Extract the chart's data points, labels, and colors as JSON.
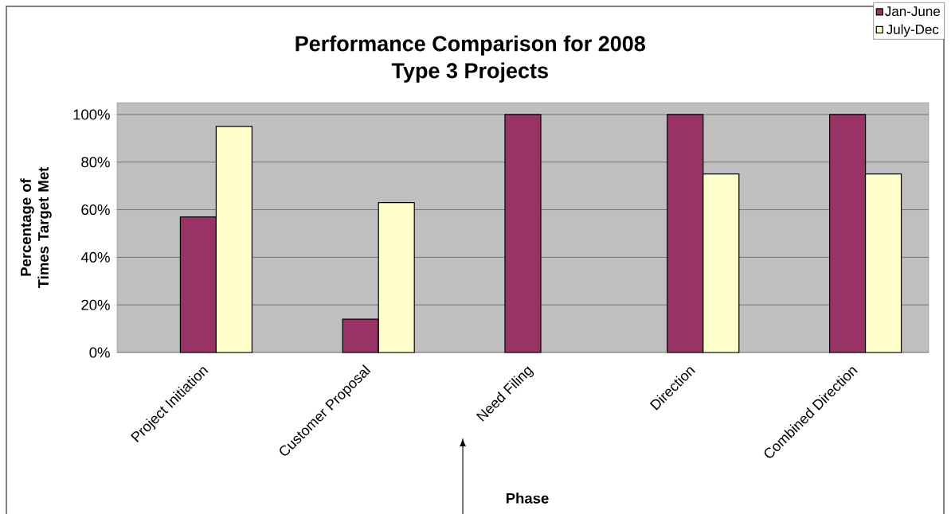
{
  "chart_data": {
    "type": "bar",
    "title": "Performance Comparison for 2008",
    "subtitle": "Type 3 Projects",
    "ylabel": "Percentage of Times Target Met",
    "annotations": [
      "Phase"
    ],
    "categories": [
      "Project Initiation",
      "Customer Proposal",
      "Need Filing",
      "Direction",
      "Combined Direction"
    ],
    "series": [
      {
        "name": "Jan-June",
        "color": "#993366",
        "values": [
          57,
          14,
          100,
          100,
          100
        ]
      },
      {
        "name": "July-Dec",
        "color": "#ffffcc",
        "values": [
          95,
          63,
          null,
          75,
          75
        ]
      }
    ],
    "ylim": [
      0,
      105
    ],
    "yticks": [
      {
        "value": 0,
        "label": "0%"
      },
      {
        "value": 20,
        "label": "20%"
      },
      {
        "value": 40,
        "label": "40%"
      },
      {
        "value": 60,
        "label": "60%"
      },
      {
        "value": 80,
        "label": "80%"
      },
      {
        "value": 100,
        "label": "100%"
      }
    ],
    "grid": "y",
    "legend": "top right"
  }
}
